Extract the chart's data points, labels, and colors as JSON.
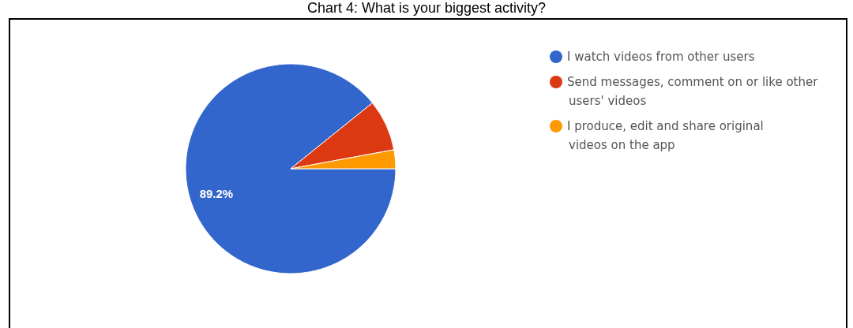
{
  "chart_data": {
    "type": "pie",
    "title": "Chart 4: What is your biggest activity?",
    "categories": [
      "I watch videos from other users",
      "Send messages, comment on or like other users' videos",
      "I produce, edit and share original videos on the app"
    ],
    "values": [
      89.2,
      7.9,
      2.9
    ],
    "colors": [
      "#3366cc",
      "#dc3912",
      "#ff9900"
    ],
    "value_labels": [
      "89.2%",
      null,
      null
    ],
    "legend": "top right"
  }
}
